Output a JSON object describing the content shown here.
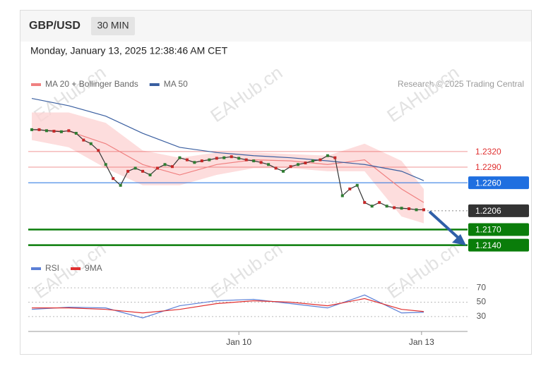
{
  "header": {
    "symbol": "GBP/USD",
    "timeframe": "30 MIN",
    "datetime": "Monday, January 13, 2025 12:38:46 AM CET",
    "credit": "Research © 2025 Trading Central",
    "watermark": "EAHub.cn"
  },
  "chart_data": [
    {
      "type": "line",
      "xlim": [
        0,
        53
      ],
      "ylim": [
        1.213,
        1.2435
      ],
      "xticks": [
        {
          "value": 28,
          "label": "Jan 10"
        },
        {
          "value": 52.7,
          "label": "Jan 13"
        }
      ],
      "price": {
        "color": "#333333",
        "values": [
          1.2362,
          1.2362,
          1.236,
          1.2359,
          1.2358,
          1.236,
          1.2355,
          1.2342,
          1.2335,
          1.2322,
          1.2295,
          1.2268,
          1.2255,
          1.2282,
          1.2288,
          1.2282,
          1.2275,
          1.2288,
          1.2295,
          1.2291,
          1.2308,
          1.2304,
          1.2299,
          1.2302,
          1.2304,
          1.2307,
          1.2308,
          1.231,
          1.2307,
          1.2304,
          1.2302,
          1.2299,
          1.2295,
          1.2288,
          1.2282,
          1.2291,
          1.2295,
          1.2298,
          1.2302,
          1.2304,
          1.2312,
          1.2308,
          1.2235,
          1.2248,
          1.2255,
          1.2222,
          1.2215,
          1.2222,
          1.2215,
          1.2212,
          1.2211,
          1.221,
          1.2208,
          1.2208
        ]
      },
      "series": [
        {
          "name": "MA 20 + Bollinger Bands",
          "color": "#f08080",
          "band_color": "#fdd5d5",
          "x": [
            0,
            5,
            10,
            15,
            20,
            25,
            30,
            35,
            40,
            45,
            50,
            53
          ],
          "values": [
            1.2362,
            1.2359,
            1.2335,
            1.2295,
            1.2275,
            1.2295,
            1.2304,
            1.2302,
            1.2295,
            1.2304,
            1.2248,
            1.2222
          ],
          "upper": [
            1.2395,
            1.2395,
            1.2375,
            1.2322,
            1.2308,
            1.2318,
            1.2318,
            1.2315,
            1.2312,
            1.2335,
            1.2302,
            1.2248
          ],
          "lower": [
            1.2342,
            1.2328,
            1.2288,
            1.2255,
            1.2255,
            1.2275,
            1.2288,
            1.2288,
            1.2282,
            1.2282,
            1.2195,
            1.2182
          ]
        },
        {
          "name": "MA 50",
          "color": "#3a5fa0",
          "x": [
            0,
            5,
            10,
            15,
            20,
            25,
            30,
            35,
            40,
            45,
            50,
            53
          ],
          "values": [
            1.2422,
            1.2408,
            1.2388,
            1.2355,
            1.2328,
            1.2318,
            1.2312,
            1.2308,
            1.2302,
            1.2295,
            1.2282,
            1.2264
          ]
        }
      ],
      "levels": [
        {
          "value": 1.232,
          "label": "1.2320"
        },
        {
          "value": 1.229,
          "label": "1.2290"
        },
        {
          "value": 1.226,
          "label": "1.2260"
        },
        1.2206,
        {
          "value": 1.217,
          "label": "1.2170"
        },
        {
          "value": 1.214,
          "label": "1.2140"
        }
      ],
      "level_colors": [
        "#e03030",
        "#e03030",
        "#1f6fe0",
        "#333333",
        "#0a7d0a",
        "#0a7d0a"
      ],
      "level_boxed": [
        false,
        false,
        true,
        true,
        true,
        true
      ],
      "level_dashed": [
        false,
        false,
        false,
        true,
        false,
        false
      ]
    },
    {
      "type": "line",
      "xlim": [
        0,
        53
      ],
      "ylim": [
        20,
        80
      ],
      "yticks": [
        30,
        50,
        70
      ],
      "series": [
        {
          "name": "RSI",
          "color": "#5b7fd6",
          "x": [
            0,
            5,
            10,
            15,
            20,
            25,
            30,
            35,
            40,
            45,
            50,
            53
          ],
          "values": [
            40,
            43,
            42,
            28,
            45,
            52,
            54,
            48,
            42,
            60,
            35,
            36
          ]
        },
        {
          "name": "9MA",
          "color": "#e03030",
          "x": [
            0,
            5,
            10,
            15,
            20,
            25,
            30,
            35,
            40,
            45,
            50,
            53
          ],
          "values": [
            42,
            42,
            40,
            35,
            40,
            48,
            52,
            50,
            45,
            55,
            40,
            37
          ]
        }
      ]
    }
  ]
}
